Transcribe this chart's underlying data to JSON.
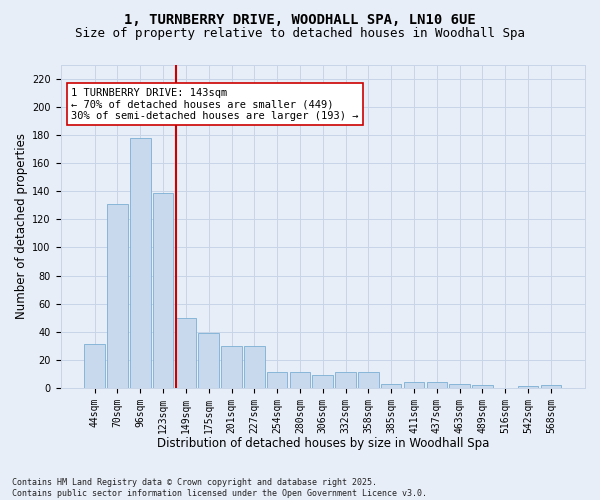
{
  "title_line1": "1, TURNBERRY DRIVE, WOODHALL SPA, LN10 6UE",
  "title_line2": "Size of property relative to detached houses in Woodhall Spa",
  "xlabel": "Distribution of detached houses by size in Woodhall Spa",
  "ylabel": "Number of detached properties",
  "categories": [
    "44sqm",
    "70sqm",
    "96sqm",
    "123sqm",
    "149sqm",
    "175sqm",
    "201sqm",
    "227sqm",
    "254sqm",
    "280sqm",
    "306sqm",
    "332sqm",
    "358sqm",
    "385sqm",
    "411sqm",
    "437sqm",
    "463sqm",
    "489sqm",
    "516sqm",
    "542sqm",
    "568sqm"
  ],
  "values": [
    31,
    131,
    178,
    139,
    50,
    39,
    30,
    30,
    11,
    11,
    9,
    11,
    11,
    3,
    4,
    4,
    3,
    2,
    0,
    1,
    2
  ],
  "bar_color": "#c8d9ee",
  "bar_edge_color": "#7bafd4",
  "vline_color": "#cc0000",
  "annotation_line1": "1 TURNBERRY DRIVE: 143sqm",
  "annotation_line2": "← 70% of detached houses are smaller (449)",
  "annotation_line3": "30% of semi-detached houses are larger (193) →",
  "annotation_box_color": "#ffffff",
  "annotation_box_edge": "#cc0000",
  "ylim": [
    0,
    230
  ],
  "yticks": [
    0,
    20,
    40,
    60,
    80,
    100,
    120,
    140,
    160,
    180,
    200,
    220
  ],
  "grid_color": "#c8d4e8",
  "background_color": "#e8eef8",
  "footer_text": "Contains HM Land Registry data © Crown copyright and database right 2025.\nContains public sector information licensed under the Open Government Licence v3.0.",
  "title_fontsize": 10,
  "subtitle_fontsize": 9,
  "xlabel_fontsize": 8.5,
  "ylabel_fontsize": 8.5,
  "tick_fontsize": 7,
  "footer_fontsize": 6,
  "annotation_fontsize": 7.5
}
